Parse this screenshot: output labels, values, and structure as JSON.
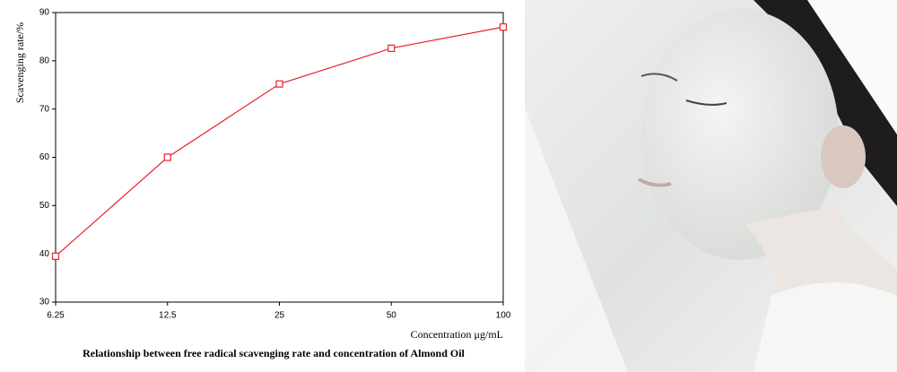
{
  "chart_data": {
    "type": "line",
    "caption": "Relationship between free radical scavenging rate and concentration of Almond Oil",
    "x_label": "Concentration μg/mL",
    "y_label": "Scavenging rate/%",
    "x": [
      6.25,
      12.5,
      25,
      50,
      100
    ],
    "series": [
      {
        "name": "Scavenging rate",
        "color": "#e8232a",
        "values": [
          39.5,
          60,
          75.2,
          82.6,
          87
        ]
      }
    ],
    "xlim": [
      6.25,
      100
    ],
    "xticks": [
      6.25,
      12.5,
      25,
      50,
      100
    ],
    "xscale": "log",
    "ylim": [
      30,
      90
    ],
    "yticks": [
      30,
      40,
      50,
      60,
      70,
      80,
      90
    ]
  }
}
